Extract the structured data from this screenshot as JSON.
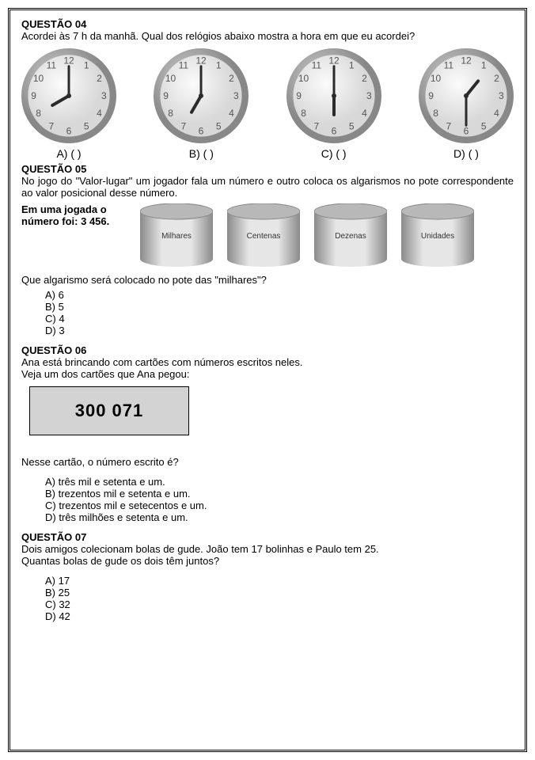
{
  "q4": {
    "title": "QUESTÃO 04",
    "text": "Acordei às 7 h da manhã. Qual dos relógios abaixo mostra a hora em que eu acordei?",
    "clocks": [
      {
        "hour": 8,
        "min": 0,
        "opt": "A) (   )"
      },
      {
        "hour": 7,
        "min": 0,
        "opt": "B) (   )"
      },
      {
        "hour": 6,
        "min": 0,
        "opt": "C) (   )"
      },
      {
        "hour": 12.8,
        "min": 30,
        "opt": "D) (   )"
      }
    ],
    "style": {
      "size": 120,
      "rimOuter": "#888888",
      "rimInner": "#c8c8c8",
      "face1": "#fbfbfb",
      "face2": "#d8d8d8",
      "handColor": "#2b2b2b",
      "numFont": 12
    }
  },
  "q5": {
    "title": "QUESTÃO 05",
    "text": "No jogo do \"Valor-lugar\" um jogador fala um número e outro coloca os algarismos no pote correspondente ao valor posicional desse número.",
    "play_l1": "Em uma jogada o",
    "play_l2": "número foi: 3 456.",
    "pots": [
      "Milhares",
      "Centenas",
      "Dezenas",
      "Unidades"
    ],
    "potStyle": {
      "w": 92,
      "h": 80,
      "c1": "#e6e6e6",
      "c2": "#8a8a8a",
      "font": 10
    },
    "q": "Que algarismo será colocado no pote das \"milhares\"?",
    "opts": [
      "A)  6",
      "B)  5",
      "C)  4",
      "D)  3"
    ]
  },
  "q6": {
    "title": "QUESTÃO 06",
    "l1": "Ana está brincando com cartões com números escritos neles.",
    "l2": "Veja um dos cartões que Ana pegou:",
    "card": "300 071",
    "q": "Nesse cartão, o número escrito é?",
    "opts": [
      "A)  três mil e setenta e um.",
      "B)  trezentos mil e setenta e um.",
      "C)  trezentos mil e setecentos e um.",
      "D)  três milhões e setenta e um."
    ]
  },
  "q7": {
    "title": "QUESTÃO 07",
    "l1": "Dois amigos colecionam bolas de gude. João tem 17 bolinhas e Paulo tem 25.",
    "l2": "Quantas bolas de gude os dois têm juntos?",
    "opts": [
      "A)  17",
      "B)  25",
      "C)  32",
      "D)  42"
    ]
  }
}
